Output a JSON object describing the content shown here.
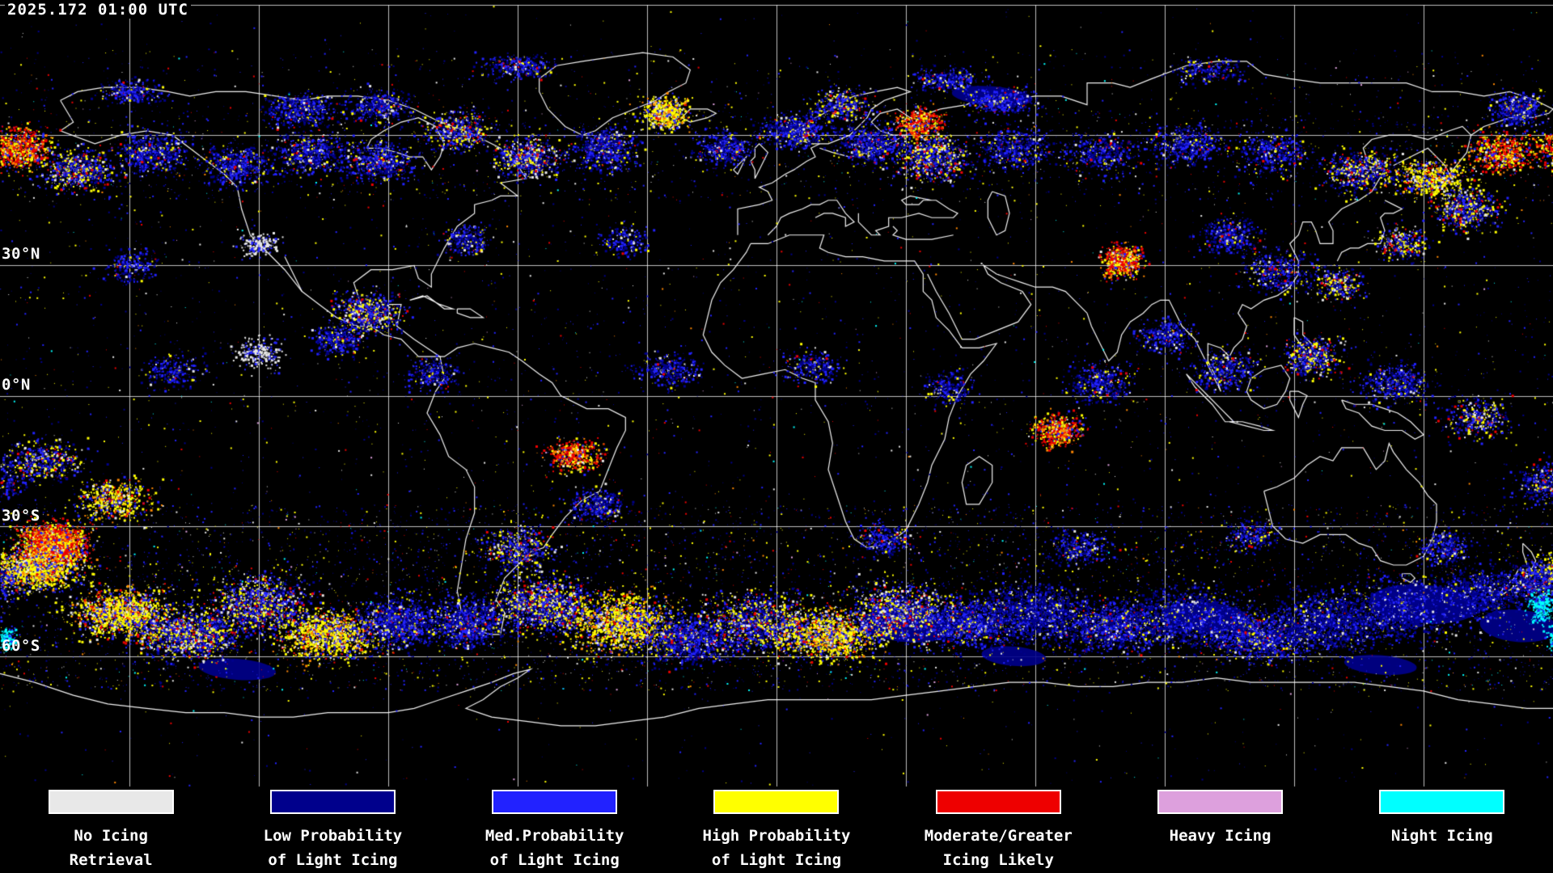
{
  "header": {
    "timestamp": "2025.172 01:00 UTC"
  },
  "map": {
    "latitude_labels": [
      {
        "label": "30°N"
      },
      {
        "label": "0°N"
      },
      {
        "label": "30°S"
      },
      {
        "label": "60°S"
      }
    ]
  },
  "legend": {
    "items": [
      {
        "line1": "No Icing",
        "line2": "Retrieval",
        "color": "#e8e8e8"
      },
      {
        "line1": "Low Probability",
        "line2": "of Light Icing",
        "color": "#00008c"
      },
      {
        "line1": "Med.Probability",
        "line2": "of Light Icing",
        "color": "#2222ff"
      },
      {
        "line1": "High Probability",
        "line2": "of Light Icing",
        "color": "#ffff00"
      },
      {
        "line1": "Moderate/Greater",
        "line2": "Icing Likely",
        "color": "#ee0000"
      },
      {
        "line1": "Heavy Icing",
        "line2": "",
        "color": "#dda0dd"
      },
      {
        "line1": "Night Icing",
        "line2": "",
        "color": "#00ffff"
      }
    ]
  },
  "colors": {
    "background": "#000000",
    "coastline": "#ffffff",
    "graticule": "#cccccc",
    "orange": "#ff8800"
  }
}
